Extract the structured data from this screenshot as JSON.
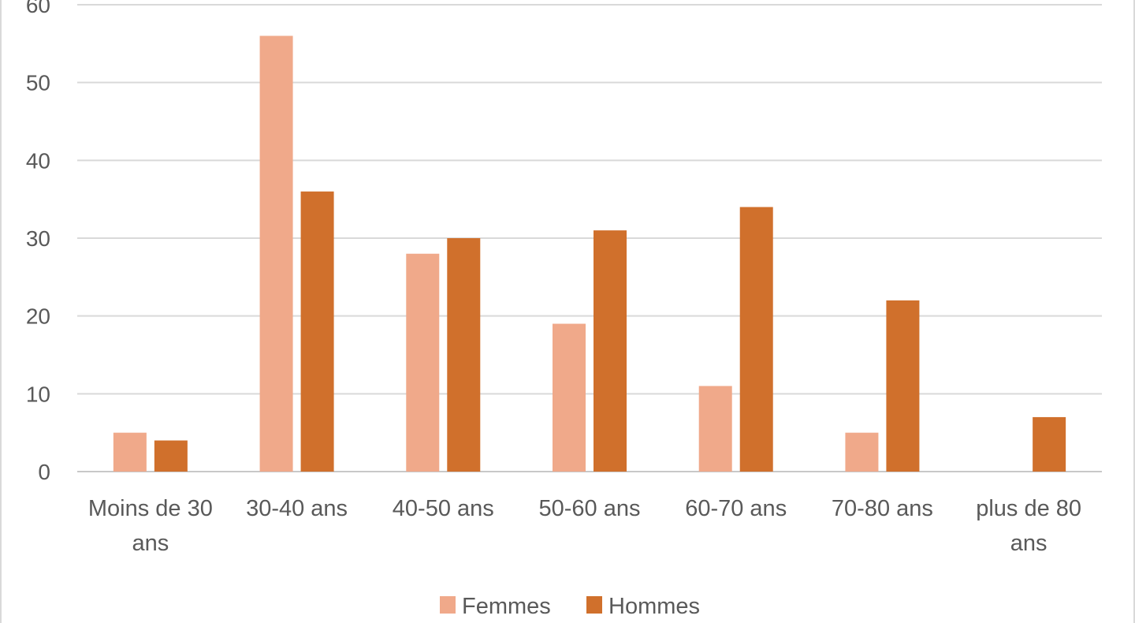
{
  "chart_data": {
    "type": "bar",
    "categories": [
      [
        "Moins de 30",
        "ans"
      ],
      [
        "30-40 ans"
      ],
      [
        "40-50 ans"
      ],
      [
        "50-60 ans"
      ],
      [
        "60-70 ans"
      ],
      [
        "70-80 ans"
      ],
      [
        "plus de 80",
        "ans"
      ]
    ],
    "series": [
      {
        "name": "Femmes",
        "color": "#f0a98a",
        "values": [
          5,
          56,
          28,
          19,
          11,
          5,
          0
        ]
      },
      {
        "name": "Hommes",
        "color": "#d0702c",
        "values": [
          4,
          36,
          30,
          31,
          34,
          22,
          7
        ]
      }
    ],
    "ylim": [
      0,
      60
    ],
    "yticks": [
      0,
      10,
      20,
      30,
      40,
      50,
      60
    ],
    "grid": true,
    "legend": "bottom"
  }
}
